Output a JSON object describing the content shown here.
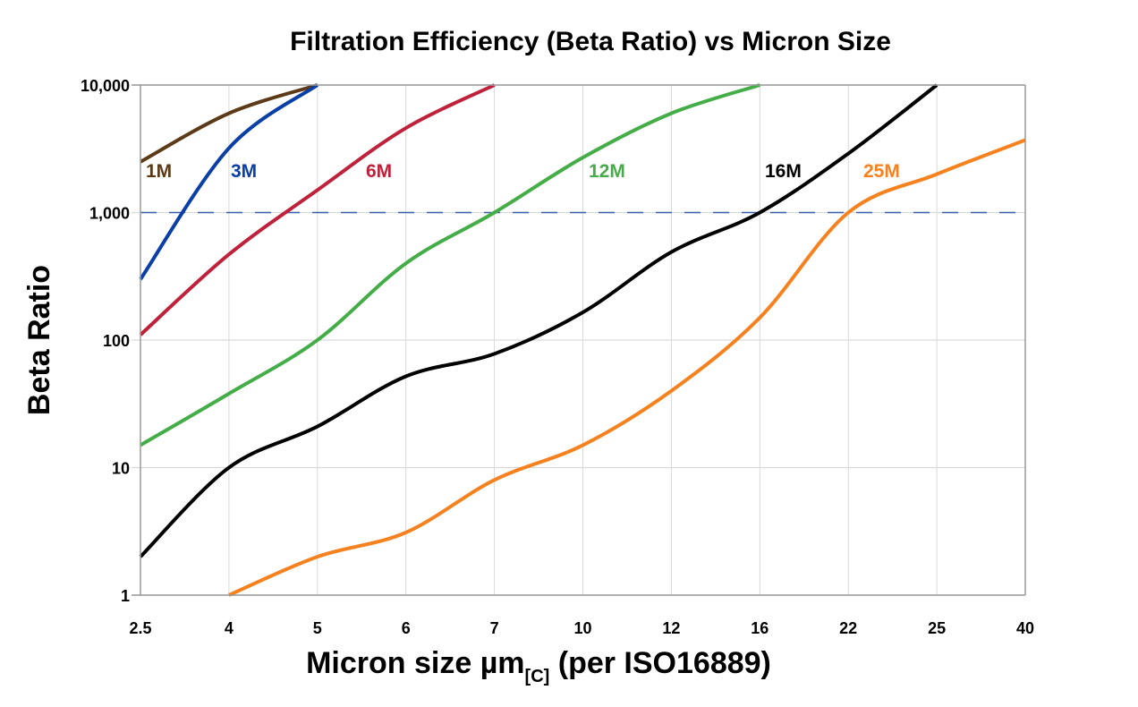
{
  "chart_data": {
    "type": "line",
    "title": "Filtration Efficiency (Beta Ratio) vs Micron Size",
    "xlabel": {
      "main": "Micron size µm",
      "subscript": "[C]",
      "suffix": " (per ISO16889)"
    },
    "ylabel": "Beta Ratio",
    "x_scale": "categorical",
    "categories": [
      "2.5",
      "4",
      "5",
      "6",
      "7",
      "10",
      "12",
      "16",
      "22",
      "25",
      "40"
    ],
    "y_scale": "log",
    "ylim": [
      1,
      10000
    ],
    "y_ticks": [
      1,
      10,
      100,
      1000,
      10000
    ],
    "y_tick_labels": [
      "1",
      "10",
      "100",
      "1,000",
      "10,000"
    ],
    "grid": true,
    "reference_line": {
      "y": 1000,
      "style": "dashed",
      "color": "#3b5ea8"
    },
    "series": [
      {
        "name": "1M",
        "color": "#5c3a17",
        "x": [
          "2.5",
          "4",
          "5"
        ],
        "values": [
          2500,
          6000,
          10000
        ]
      },
      {
        "name": "3M",
        "color": "#0a3fa8",
        "x": [
          "2.5",
          "4",
          "5"
        ],
        "values": [
          300,
          3200,
          10000
        ]
      },
      {
        "name": "6M",
        "color": "#c0213a",
        "x": [
          "2.5",
          "4",
          "5",
          "6",
          "7"
        ],
        "values": [
          110,
          470,
          1500,
          4600,
          10000
        ]
      },
      {
        "name": "12M",
        "color": "#45ad48",
        "x": [
          "2.5",
          "4",
          "5",
          "6",
          "7",
          "10",
          "12",
          "16"
        ],
        "values": [
          15,
          38,
          100,
          400,
          1000,
          2700,
          6000,
          10000
        ]
      },
      {
        "name": "16M",
        "color": "#000000",
        "x": [
          "2.5",
          "4",
          "5",
          "6",
          "7",
          "10",
          "12",
          "16",
          "22",
          "25"
        ],
        "values": [
          2,
          10,
          21,
          52,
          78,
          165,
          490,
          1000,
          2900,
          10000
        ]
      },
      {
        "name": "25M",
        "color": "#f5821f",
        "x": [
          "4",
          "5",
          "6",
          "7",
          "10",
          "12",
          "16",
          "22",
          "25",
          "40"
        ],
        "values": [
          1,
          2,
          3.1,
          8,
          15,
          40,
          150,
          1000,
          2000,
          3700
        ]
      }
    ]
  }
}
